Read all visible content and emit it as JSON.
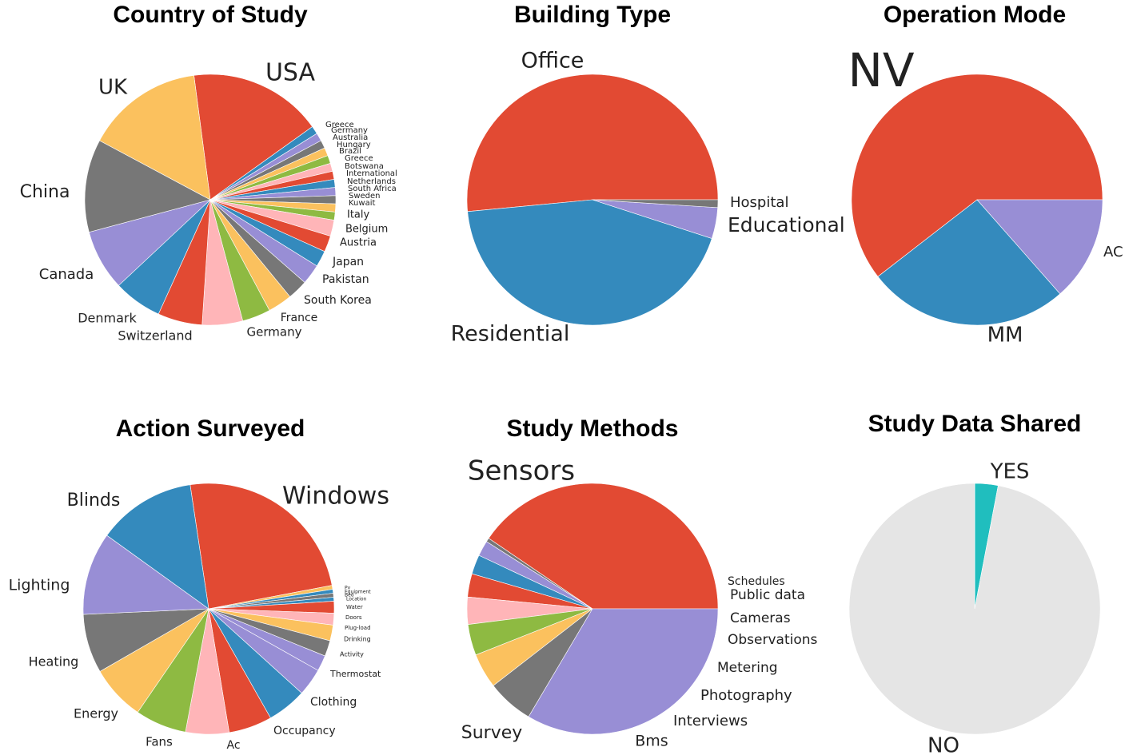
{
  "chart_data": [
    {
      "type": "pie",
      "title": "Country of Study",
      "labels": [
        "USA",
        "Greece",
        "Germany",
        "Australia",
        "Hungary",
        "Brazil",
        "Greece",
        "Botswana",
        "International",
        "Netherlands",
        "South Africa",
        "Sweden",
        "Kuwait",
        "Italy",
        "Belgium",
        "Austria",
        "Japan",
        "Pakistan",
        "South Korea",
        "France",
        "Germany",
        "Switzerland",
        "Denmark",
        "Canada",
        "China",
        "UK"
      ],
      "values": [
        16.5,
        1.0,
        1.0,
        1.0,
        1.0,
        1.0,
        1.0,
        1.0,
        1.0,
        1.0,
        1.0,
        1.0,
        1.0,
        2.0,
        2.0,
        2.0,
        2.5,
        2.5,
        3.0,
        3.5,
        5.0,
        5.5,
        6.0,
        7.5,
        11.5,
        14.5
      ]
    },
    {
      "type": "pie",
      "title": "Building Type",
      "labels": [
        "Office",
        "Residential",
        "Educational",
        "Hospital"
      ],
      "values": [
        51.5,
        43.5,
        4.0,
        1.0
      ]
    },
    {
      "type": "pie",
      "title": "Operation Mode",
      "labels": [
        "NV",
        "MM",
        "AC"
      ],
      "values": [
        60.5,
        26.0,
        13.5
      ]
    },
    {
      "type": "pie",
      "title": "Action Surveyed",
      "labels": [
        "Windows",
        "Pv",
        "Equipment",
        "Bed",
        "Location",
        "Water",
        "Doors",
        "Plug-load",
        "Drinking",
        "Activity",
        "Thermostat",
        "Clothing",
        "Occupancy",
        "Ac",
        "Fans",
        "Energy",
        "Heating",
        "Lighting",
        "Blinds"
      ],
      "values": [
        24.0,
        0.5,
        0.5,
        0.5,
        0.5,
        1.5,
        1.5,
        2.0,
        2.0,
        2.0,
        3.5,
        5.0,
        5.5,
        5.5,
        6.5,
        7.0,
        7.5,
        10.5,
        12.5
      ]
    },
    {
      "type": "pie",
      "title": "Study Methods",
      "labels": [
        "Sensors",
        "Schedules",
        "Public data",
        "Cameras",
        "Observations",
        "Metering",
        "Photography",
        "Interviews",
        "Bms",
        "Survey"
      ],
      "values": [
        40.5,
        0.5,
        2.0,
        2.5,
        3.0,
        3.5,
        4.0,
        4.5,
        6.0,
        33.5
      ]
    },
    {
      "type": "pie",
      "title": "Study Data Shared",
      "labels": [
        "YES",
        "NO"
      ],
      "values": [
        3.0,
        97.0
      ]
    }
  ],
  "colors": {
    "red": "#E24A33",
    "blue": "#348ABD",
    "purple": "#988ED5",
    "gray": "#777777",
    "yellow": "#FBC15E",
    "green": "#8EBA42",
    "pink": "#FFB5B8",
    "teal": "#20BEBE",
    "lightgray": "#E5E5E5"
  }
}
